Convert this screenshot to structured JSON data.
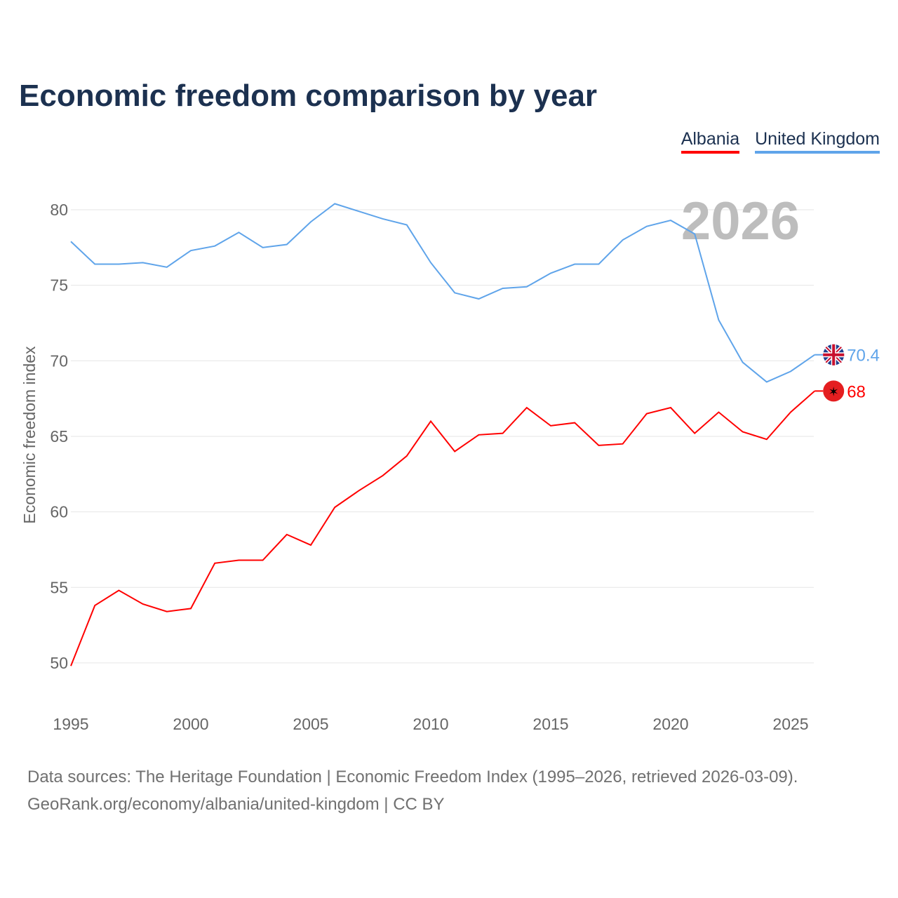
{
  "title": "Economic freedom comparison by year",
  "source_line1": "Data sources: The Heritage Foundation | Economic Freedom Index (1995–2026, retrieved 2026-03-09).",
  "source_line2": "GeoRank.org/economy/albania/united-kingdom | CC BY",
  "chart_data": {
    "type": "line",
    "title": "Economic freedom comparison by year",
    "xlabel": "",
    "ylabel": "Economic freedom index",
    "watermark_year": "2026",
    "xlim": [
      1995,
      2026
    ],
    "ylim": [
      48,
      82
    ],
    "x_ticks": [
      1995,
      2000,
      2005,
      2010,
      2015,
      2020,
      2025
    ],
    "y_ticks": [
      50,
      55,
      60,
      65,
      70,
      75,
      80
    ],
    "grid": true,
    "legend_position": "top-right",
    "x": [
      1995,
      1996,
      1997,
      1998,
      1999,
      2000,
      2001,
      2002,
      2003,
      2004,
      2005,
      2006,
      2007,
      2008,
      2009,
      2010,
      2011,
      2012,
      2013,
      2014,
      2015,
      2016,
      2017,
      2018,
      2019,
      2020,
      2021,
      2022,
      2023,
      2024,
      2025,
      2026
    ],
    "series": [
      {
        "name": "Albania",
        "color": "#ff0000",
        "end_label": "68",
        "values": [
          49.8,
          53.8,
          54.8,
          53.9,
          53.4,
          53.6,
          56.6,
          56.8,
          56.8,
          58.5,
          57.8,
          60.3,
          61.4,
          62.4,
          63.7,
          66.0,
          64.0,
          65.1,
          65.2,
          66.9,
          65.7,
          65.9,
          64.4,
          64.5,
          66.5,
          66.9,
          65.2,
          66.6,
          65.3,
          64.8,
          66.6,
          68.0
        ]
      },
      {
        "name": "United Kingdom",
        "color": "#5fa4ea",
        "end_label": "70.4",
        "values": [
          77.9,
          76.4,
          76.4,
          76.5,
          76.2,
          77.3,
          77.6,
          78.5,
          77.5,
          77.7,
          79.2,
          80.4,
          79.9,
          79.4,
          79.0,
          76.5,
          74.5,
          74.1,
          74.8,
          74.9,
          75.8,
          76.4,
          76.4,
          78.0,
          78.9,
          79.3,
          78.4,
          72.7,
          69.9,
          68.6,
          69.3,
          70.4
        ]
      }
    ]
  }
}
